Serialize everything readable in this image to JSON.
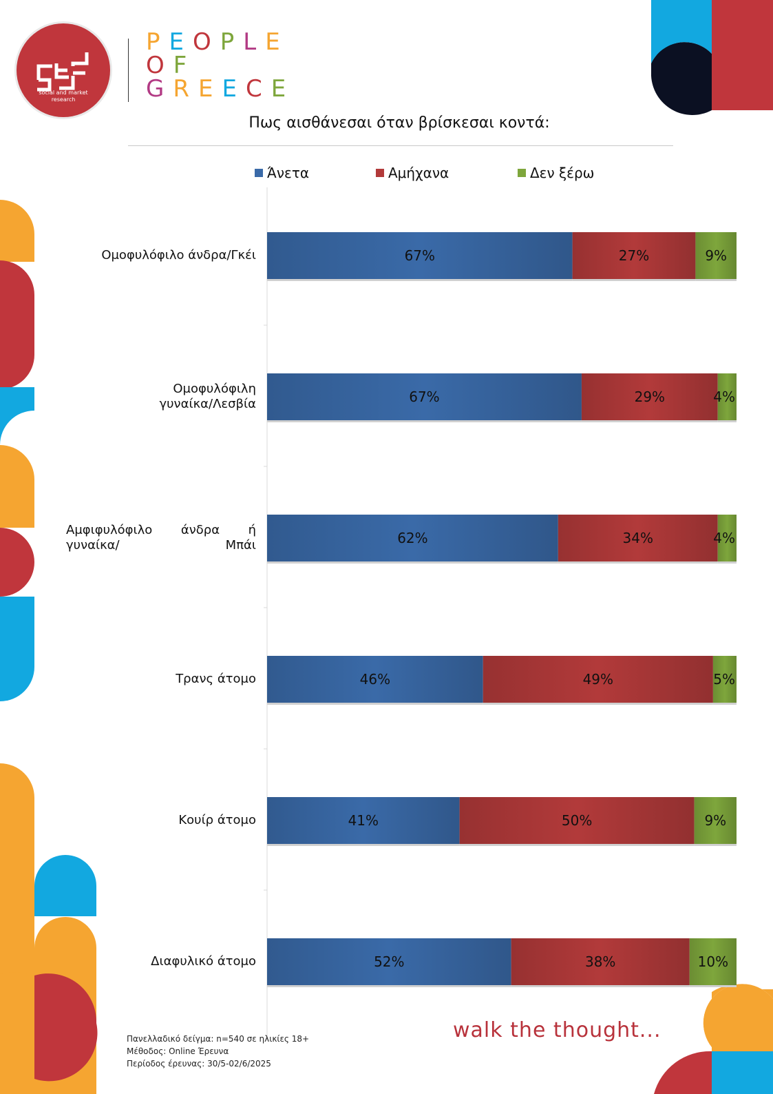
{
  "brand": {
    "logo_tagline": "social and market research",
    "people_of_greece": [
      "PEOPLE",
      "OF",
      "GREECE"
    ],
    "tagline": "walk the thought..."
  },
  "chart_data": {
    "type": "bar",
    "stacked": true,
    "orientation": "horizontal",
    "percent": true,
    "title": "Πως αισθάνεσαι όταν βρίσκεσαι κοντά:",
    "categories": [
      "Ομοφυλόφιλο άνδρα/Γκέι",
      "Ομοφυλόφιλη γυναίκα/Λεσβία",
      "Αμφιφυλόφιλο άνδρα ή γυναίκα/ Μπάι",
      "Τρανς άτομο",
      "Κουίρ άτομο",
      "Διαφυλικό άτομο"
    ],
    "series": [
      {
        "name": "Άνετα",
        "color": "#3a6aa8",
        "values": [
          67,
          67,
          62,
          46,
          41,
          52
        ]
      },
      {
        "name": "Αμήχανα",
        "color": "#b23a3a",
        "values": [
          27,
          29,
          34,
          49,
          50,
          38
        ]
      },
      {
        "name": "Δεν ξέρω",
        "color": "#7ea63c",
        "values": [
          9,
          4,
          4,
          5,
          9,
          10
        ]
      }
    ],
    "data_labels": [
      [
        "67%",
        "27%",
        "9%"
      ],
      [
        "67%",
        "29%",
        "4%"
      ],
      [
        "62%",
        "34%",
        "4%"
      ],
      [
        "46%",
        "49%",
        "5%"
      ],
      [
        "41%",
        "50%",
        "9%"
      ],
      [
        "52%",
        "38%",
        "10%"
      ]
    ],
    "legend_position": "top",
    "grid": false
  },
  "footer": {
    "sample": "Πανελλαδικό δείγμα: n=540 σε ηλικίες 18+",
    "method": "Μέθοδος: Online Έρευνα",
    "period": "Περίοδος έρευνας: 30/5-02/6/2025"
  }
}
